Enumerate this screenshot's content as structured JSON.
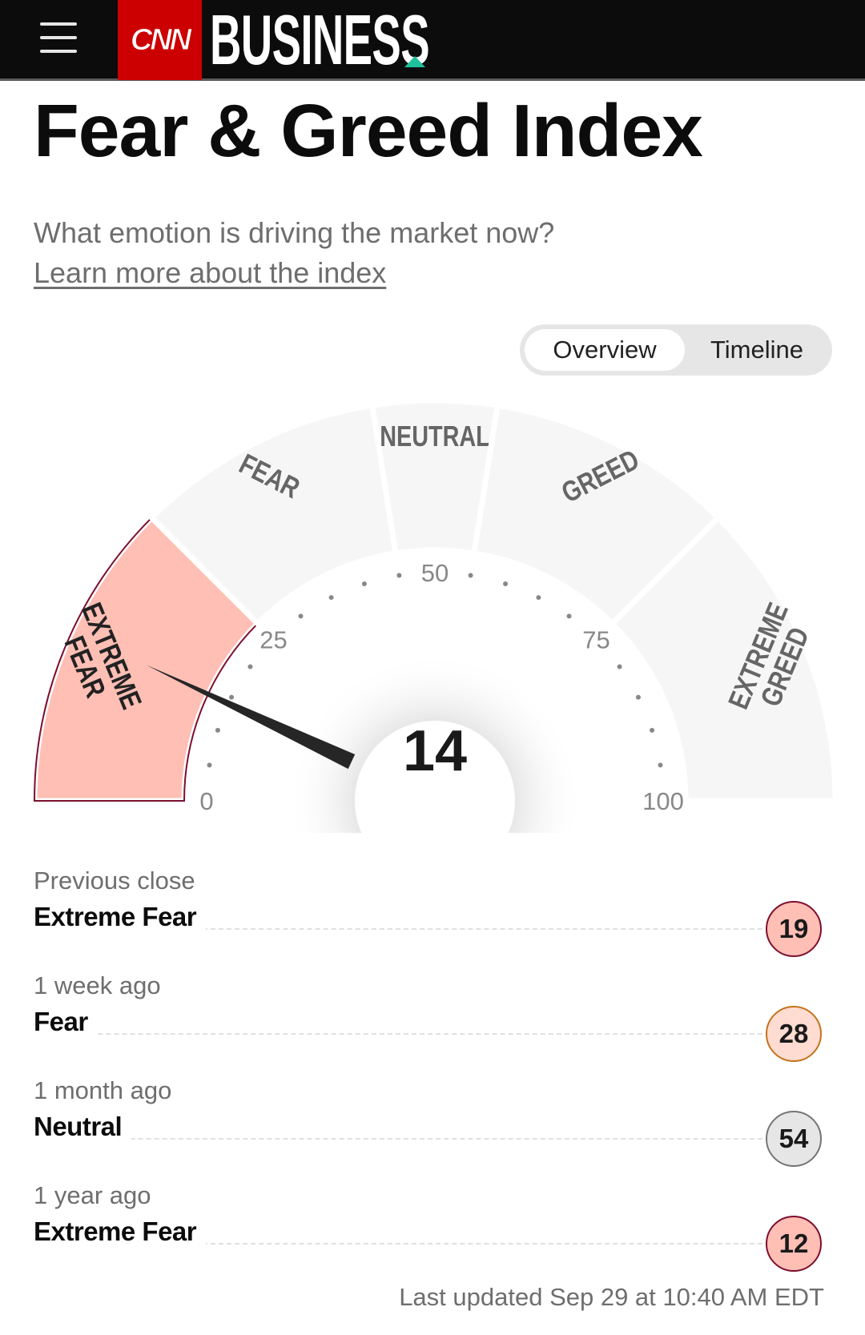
{
  "header": {
    "menu_icon": "hamburger-icon",
    "logo_text": "CNN",
    "section": "BUSINESS",
    "brand_red": "#cc0000",
    "accent": "#1ec19b"
  },
  "page": {
    "title": "Fear & Greed Index",
    "subtitle": "What emotion is driving the market now?",
    "learn_link": "Learn more about the index"
  },
  "toggle": {
    "options": [
      "Overview",
      "Timeline"
    ],
    "selected": "Overview"
  },
  "chart_data": {
    "type": "gauge",
    "value": 14,
    "range": [
      0,
      100
    ],
    "tick_labels": [
      "0",
      "25",
      "50",
      "75",
      "100"
    ],
    "segments": [
      {
        "label": [
          "EXTREME",
          "FEAR"
        ],
        "from": 0,
        "to": 25,
        "active": true
      },
      {
        "label": [
          "FEAR"
        ],
        "from": 25,
        "to": 45,
        "active": false
      },
      {
        "label": [
          "NEUTRAL"
        ],
        "from": 45,
        "to": 55,
        "active": false
      },
      {
        "label": [
          "GREED"
        ],
        "from": 55,
        "to": 75,
        "active": false
      },
      {
        "label": [
          "EXTREME",
          "GREED"
        ],
        "from": 75,
        "to": 100,
        "active": false
      }
    ],
    "colors": {
      "active_fill": "#ffbfb5",
      "active_stroke": "#7d0f2e",
      "inactive_fill": "#f6f6f6",
      "label": "#666666",
      "needle": "#262626"
    }
  },
  "history": [
    {
      "period": "Previous close",
      "rating": "Extreme Fear",
      "value": "19",
      "bg": "#ffbfb5",
      "border": "#7d0f2e"
    },
    {
      "period": "1 week ago",
      "rating": "Fear",
      "value": "28",
      "bg": "#ffdcd1",
      "border": "#c4731c"
    },
    {
      "period": "1 month ago",
      "rating": "Neutral",
      "value": "54",
      "bg": "#e6e6e6",
      "border": "#757575"
    },
    {
      "period": "1 year ago",
      "rating": "Extreme Fear",
      "value": "12",
      "bg": "#ffbfb5",
      "border": "#7d0f2e"
    }
  ],
  "last_updated": "Last updated Sep 29 at 10:40 AM EDT"
}
